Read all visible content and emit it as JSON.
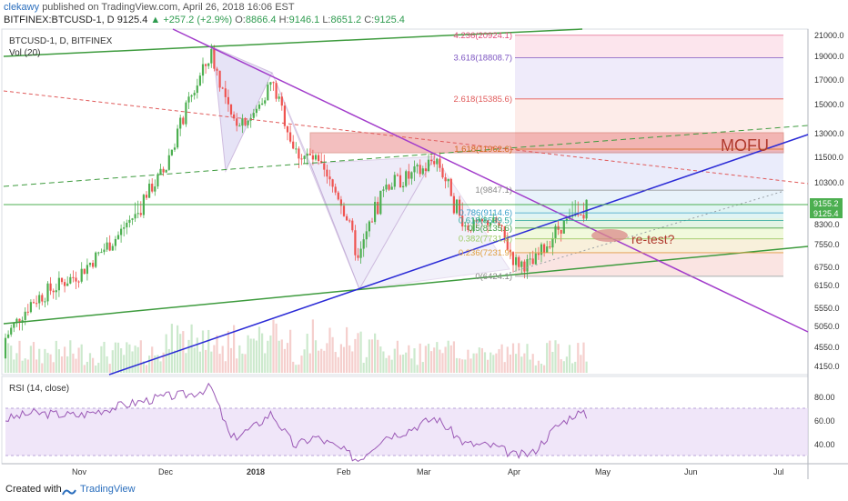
{
  "header": {
    "user": "clekawy",
    "published": "published on TradingView.com, April 26, 2018 16:06 EST",
    "symbol": "BITFINEX:BTCUSD-1, D",
    "price": "9125.4",
    "change": "▲ +257.2 (+2.9%)",
    "o_label": "O:",
    "o_val": "8866.4",
    "h_label": "H:",
    "h_val": "9146.1",
    "l_label": "L:",
    "l_val": "8651.2",
    "c_label": "C:",
    "c_val": "9125.4"
  },
  "legend": {
    "series": "BTCUSD-1, D, BITFINEX",
    "volume": "Vol (20)",
    "rsi": "RSI (14, close)"
  },
  "annotations": {
    "mofu": "MOFU",
    "retest": "re-test?"
  },
  "footer": {
    "created": "Created with",
    "brand": "TradingView"
  },
  "price_badges": {
    "upper": "9155.2",
    "lower": "9125.4"
  },
  "colors": {
    "up": "#4caf50",
    "down": "#ef5350",
    "trend_green": "#3e9b3e",
    "trend_purple": "#a23ccb",
    "trend_blue": "#2b2bd6",
    "mofu_box": "#d9534f"
  },
  "chart_data": [
    {
      "type": "line",
      "title": "BTCUSD-1, D, BITFINEX",
      "y_axis_ticks": [
        21000,
        19000,
        17000,
        15000,
        13000,
        11500,
        10300,
        9155.2,
        9125.4,
        8300,
        7550,
        6750,
        6150,
        5550,
        5050,
        4550,
        4150
      ],
      "x_axis_ticks": [
        "Nov",
        "Dec",
        "2018",
        "Feb",
        "Mar",
        "Apr",
        "May",
        "Jun",
        "Jul"
      ],
      "x": [
        "Oct-01",
        "Oct-15",
        "Nov-01",
        "Nov-15",
        "Dec-01",
        "Dec-10",
        "Dec-17",
        "Dec-24",
        "Jan-01",
        "Jan-07",
        "Jan-15",
        "Jan-22",
        "Feb-01",
        "Feb-06",
        "Feb-15",
        "Feb-22",
        "Mar-01",
        "Mar-05",
        "Mar-15",
        "Mar-25",
        "Apr-01",
        "Apr-07",
        "Apr-15",
        "Apr-22",
        "Apr-26"
      ],
      "series": [
        {
          "values": [
            4300,
            5700,
            6500,
            7900,
            10900,
            15500,
            19200,
            13800,
            14100,
            16800,
            11800,
            11300,
            9100,
            6900,
            10100,
            10400,
            10900,
            11500,
            8200,
            8500,
            6900,
            6800,
            8000,
            8900,
            9125
          ]
        }
      ],
      "fibonacci_levels": [
        {
          "ratio": "4.236",
          "value": 20924.1,
          "label": "4.236(20924.1)"
        },
        {
          "ratio": "3.618",
          "value": 18808.7,
          "label": "3.618(18808.7)"
        },
        {
          "ratio": "2.618",
          "value": 15385.6,
          "label": "2.618(15385.6)"
        },
        {
          "ratio": "1.618",
          "value": 11962.6,
          "label": "1.618(11962.6)"
        },
        {
          "ratio": "1",
          "value": 9847.1,
          "label": "1(9847.1)"
        },
        {
          "ratio": "0.786",
          "value": 9114.6,
          "label": "0.786(9114.6)"
        },
        {
          "ratio": "0.618",
          "value": 8539.5,
          "label": "0.618(8539.5)"
        },
        {
          "ratio": "0.5",
          "value": 8135.6,
          "label": "0.5(8135.6)"
        },
        {
          "ratio": "0.382",
          "value": 7731.6,
          "label": "0.382(7731.6)"
        },
        {
          "ratio": "0.236",
          "value": 7231.9,
          "label": "0.236(7231.9)"
        },
        {
          "ratio": "0",
          "value": 6424.1,
          "label": "0(6424.1)"
        }
      ]
    },
    {
      "type": "line",
      "title": "RSI (14, close)",
      "y_axis_ticks": [
        80,
        60,
        40
      ],
      "x": [
        "Oct-01",
        "Oct-15",
        "Nov-01",
        "Nov-15",
        "Dec-01",
        "Dec-10",
        "Dec-17",
        "Dec-24",
        "Jan-01",
        "Jan-07",
        "Jan-15",
        "Jan-22",
        "Feb-01",
        "Feb-06",
        "Feb-15",
        "Feb-22",
        "Mar-01",
        "Mar-05",
        "Mar-15",
        "Mar-25",
        "Apr-01",
        "Apr-07",
        "Apr-15",
        "Apr-22",
        "Apr-26"
      ],
      "series": [
        {
          "values": [
            58,
            66,
            64,
            72,
            80,
            82,
            88,
            44,
            54,
            66,
            38,
            46,
            34,
            26,
            46,
            50,
            58,
            62,
            40,
            38,
            30,
            32,
            54,
            66,
            64
          ]
        }
      ]
    }
  ]
}
